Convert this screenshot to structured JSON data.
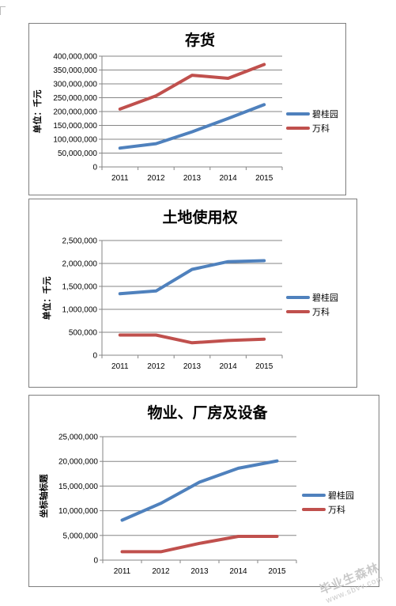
{
  "watermark": {
    "text": "毕业生森林",
    "url": "www.sbvv.com"
  },
  "chart_data": [
    {
      "type": "line",
      "title": "存货",
      "ylabel": "单位：千元",
      "xlabel": "",
      "categories": [
        "2011",
        "2012",
        "2013",
        "2014",
        "2015"
      ],
      "ylim": [
        0,
        400000000
      ],
      "yticks": [
        "0",
        "50,000,000",
        "100,000,000",
        "150,000,000",
        "200,000,000",
        "250,000,000",
        "300,000,000",
        "350,000,000",
        "400,000,000"
      ],
      "ytick_values": [
        0,
        50000000,
        100000000,
        150000000,
        200000000,
        250000000,
        300000000,
        350000000,
        400000000
      ],
      "grid": true,
      "legend": "right",
      "series": [
        {
          "name": "碧桂园",
          "color": "#4f81bd",
          "values": [
            68000000,
            84000000,
            127000000,
            175000000,
            225000000
          ]
        },
        {
          "name": "万科",
          "color": "#c0504d",
          "values": [
            209000000,
            257000000,
            331000000,
            320000000,
            370000000
          ]
        }
      ]
    },
    {
      "type": "line",
      "title": "土地使用权",
      "ylabel": "单位：千元",
      "xlabel": "",
      "categories": [
        "2011",
        "2012",
        "2013",
        "2014",
        "2015"
      ],
      "ylim": [
        0,
        2500000
      ],
      "yticks": [
        "0",
        "500,000",
        "1,000,000",
        "1,500,000",
        "2,000,000",
        "2,500,000"
      ],
      "ytick_values": [
        0,
        500000,
        1000000,
        1500000,
        2000000,
        2500000
      ],
      "grid": true,
      "legend": "right",
      "series": [
        {
          "name": "碧桂园",
          "color": "#4f81bd",
          "values": [
            1340000,
            1400000,
            1870000,
            2040000,
            2060000
          ]
        },
        {
          "name": "万科",
          "color": "#c0504d",
          "values": [
            440000,
            440000,
            270000,
            320000,
            350000
          ]
        }
      ]
    },
    {
      "type": "line",
      "title": "物业、厂房及设备",
      "ylabel": "坐标轴标题",
      "xlabel": "",
      "categories": [
        "2011",
        "2012",
        "2013",
        "2014",
        "2015"
      ],
      "ylim": [
        0,
        25000000
      ],
      "yticks": [
        "0",
        "5,000,000",
        "10,000,000",
        "15,000,000",
        "20,000,000",
        "25,000,000"
      ],
      "ytick_values": [
        0,
        5000000,
        10000000,
        15000000,
        20000000,
        25000000
      ],
      "grid": true,
      "legend": "right",
      "series": [
        {
          "name": "碧桂园",
          "color": "#4f81bd",
          "values": [
            8100000,
            11500000,
            15800000,
            18600000,
            20100000
          ]
        },
        {
          "name": "万科",
          "color": "#c0504d",
          "values": [
            1700000,
            1700000,
            3400000,
            4800000,
            4800000
          ]
        }
      ]
    }
  ]
}
